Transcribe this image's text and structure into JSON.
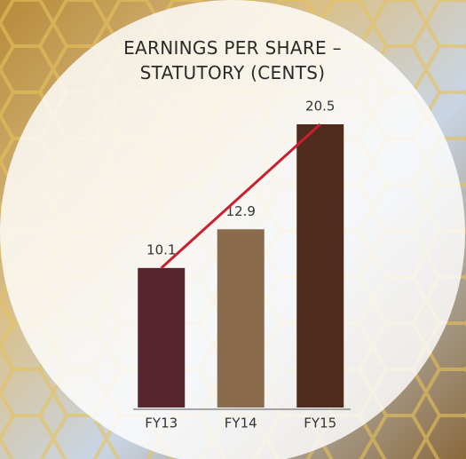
{
  "chart_data": {
    "type": "bar",
    "title": "EARNINGS PER SHARE – STATUTORY (CENTS)",
    "categories": [
      "FY13",
      "FY14",
      "FY15"
    ],
    "values": [
      10.1,
      12.9,
      20.5
    ],
    "colors": [
      "#572530",
      "#8a6b4b",
      "#4f2b1d"
    ],
    "trend_color": "#c8202f"
  }
}
